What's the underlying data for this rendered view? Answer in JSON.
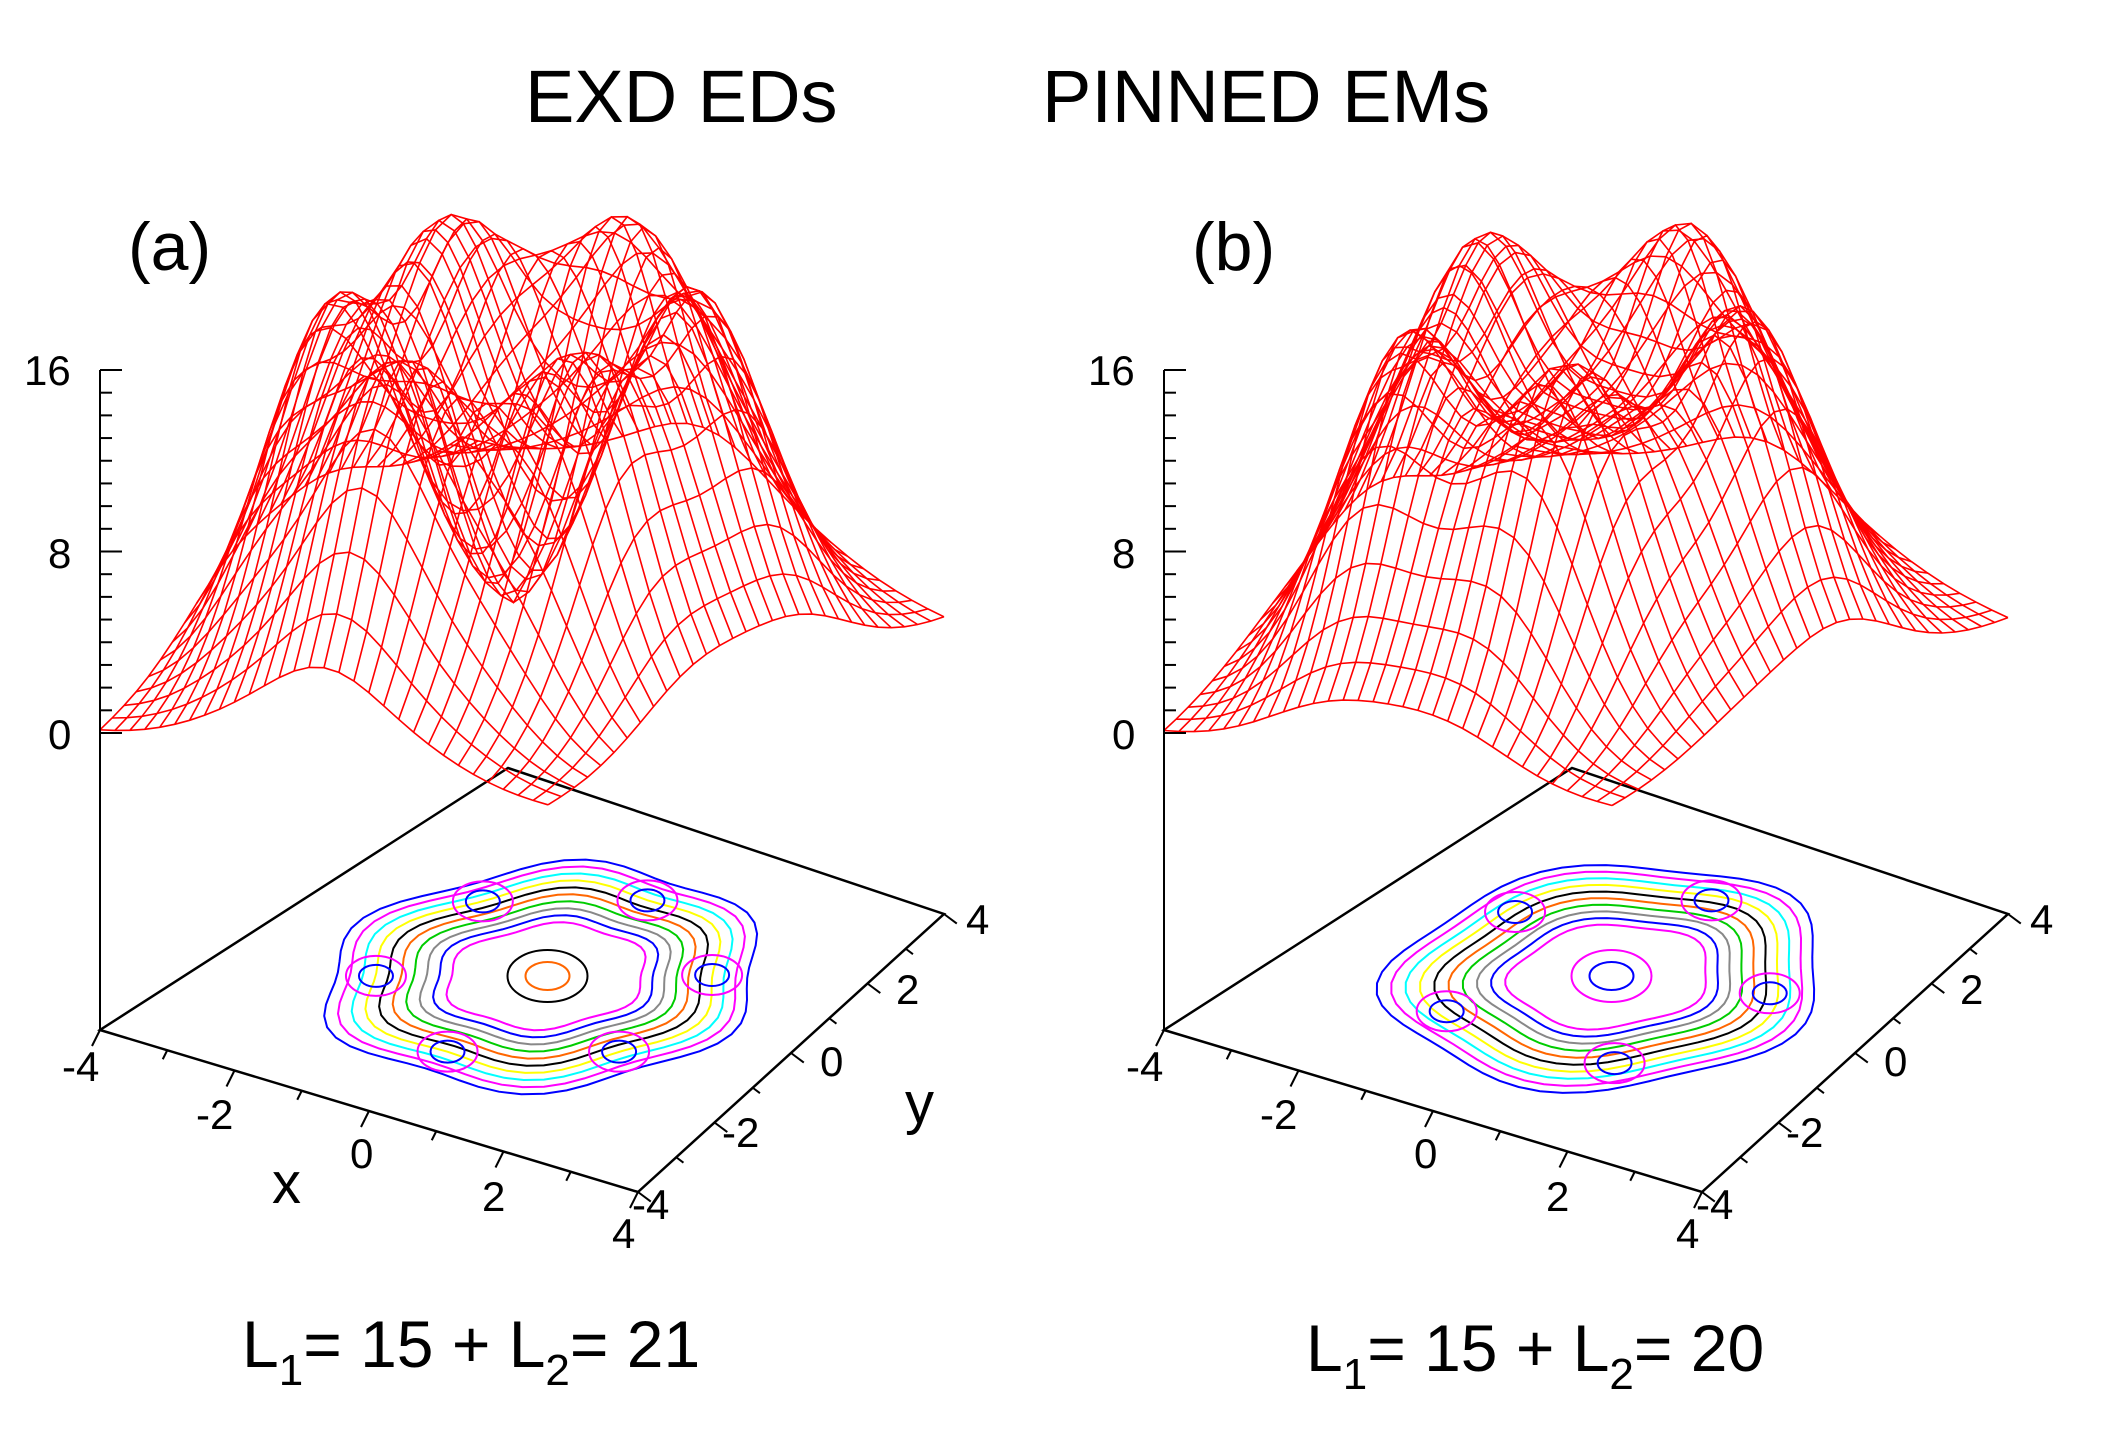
{
  "title_left": "EXD  EDs",
  "title_right": "PINNED EMs",
  "colors": {
    "surface": "#ff0000",
    "contours": [
      "#0000ff",
      "#ff00ff",
      "#00ffff",
      "#ffff00",
      "#000000",
      "#ff6600",
      "#00cc00",
      "#888888"
    ]
  },
  "chart_data": [
    {
      "type": "surface3d",
      "panel_label": "(a)",
      "description_values": {
        "n_outer_peaks": 6,
        "outer_ring_radius": 2.4,
        "inner_peak_height": 0,
        "max_height": 16
      },
      "zlim": [
        0,
        16
      ],
      "z_ticks": [
        "16",
        "8",
        "0"
      ],
      "xlim": [
        -4,
        4
      ],
      "ylim": [
        -4,
        4
      ],
      "x_ticks": [
        "-4",
        "-2",
        "0",
        "2",
        "4"
      ],
      "y_ticks": [
        "-4",
        "-2",
        "0",
        "2",
        "4"
      ],
      "xlabel": "x",
      "ylabel": "y",
      "caption": {
        "l1": "L",
        "l1_sub": "1",
        "mid": "= 15 + L",
        "l2_sub": "2",
        "end": "= 21"
      }
    },
    {
      "type": "surface3d",
      "panel_label": "(b)",
      "description_values": {
        "n_outer_peaks": 5,
        "outer_ring_radius": 2.3,
        "inner_peak_height": 1,
        "max_height": 16
      },
      "zlim": [
        0,
        16
      ],
      "z_ticks": [
        "16",
        "8",
        "0"
      ],
      "xlim": [
        -4,
        4
      ],
      "ylim": [
        -4,
        4
      ],
      "x_ticks": [
        "-4",
        "-2",
        "0",
        "2",
        "4"
      ],
      "y_ticks": [
        "-4",
        "-2",
        "0",
        "2",
        "4"
      ],
      "xlabel": "",
      "ylabel": "",
      "caption": {
        "l1": "L",
        "l1_sub": "1",
        "mid": "= 15 + L",
        "l2_sub": "2",
        "end": "= 20"
      }
    }
  ]
}
